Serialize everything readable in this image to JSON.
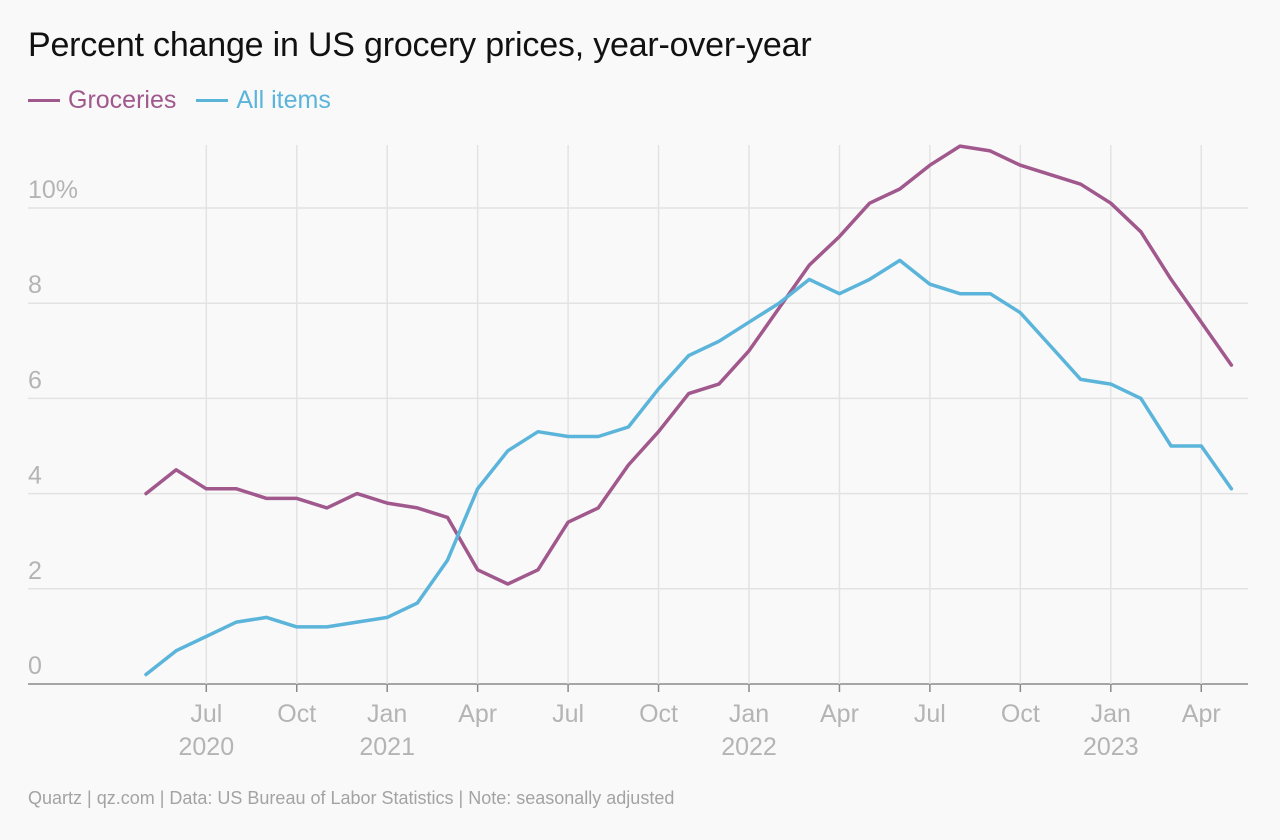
{
  "title": "Percent change in US grocery prices, year-over-year",
  "source_note": "Quartz | qz.com | Data: US Bureau of Labor Statistics | Note: seasonally adjusted",
  "colors": {
    "groceries": "#a0588d",
    "all_items": "#5bb4da",
    "grid": "#e3e3e3",
    "axis": "#8a8a8a",
    "tick_text": "#b4b4b4"
  },
  "chart_data": {
    "type": "line",
    "title": "Percent change in US grocery prices, year-over-year",
    "x": [
      "2020-05",
      "2020-06",
      "2020-07",
      "2020-08",
      "2020-09",
      "2020-10",
      "2020-11",
      "2020-12",
      "2021-01",
      "2021-02",
      "2021-03",
      "2021-04",
      "2021-05",
      "2021-06",
      "2021-07",
      "2021-08",
      "2021-09",
      "2021-10",
      "2021-11",
      "2021-12",
      "2022-01",
      "2022-02",
      "2022-03",
      "2022-04",
      "2022-05",
      "2022-06",
      "2022-07",
      "2022-08",
      "2022-09",
      "2022-10",
      "2022-11",
      "2022-12",
      "2023-01",
      "2023-02",
      "2023-03",
      "2023-04",
      "2023-05"
    ],
    "series": [
      {
        "name": "Groceries",
        "color": "#a0588d",
        "values": [
          4.0,
          4.5,
          4.1,
          4.1,
          3.9,
          3.9,
          3.7,
          4.0,
          3.8,
          3.7,
          3.5,
          2.4,
          2.1,
          2.4,
          3.4,
          3.7,
          4.6,
          5.3,
          6.1,
          6.3,
          7.0,
          7.9,
          8.8,
          9.4,
          10.1,
          10.4,
          10.9,
          11.3,
          11.2,
          10.9,
          10.7,
          10.5,
          10.1,
          9.5,
          8.5,
          7.6,
          6.7
        ]
      },
      {
        "name": "All items",
        "color": "#5bb4da",
        "values": [
          0.2,
          0.7,
          1.0,
          1.3,
          1.4,
          1.2,
          1.2,
          1.3,
          1.4,
          1.7,
          2.6,
          4.1,
          4.9,
          5.3,
          5.2,
          5.2,
          5.4,
          6.2,
          6.9,
          7.2,
          7.6,
          8.0,
          8.5,
          8.2,
          8.5,
          8.9,
          8.4,
          8.2,
          8.2,
          7.8,
          7.1,
          6.4,
          6.3,
          6.0,
          5.0,
          5.0,
          4.1
        ]
      }
    ],
    "ylim": [
      0,
      11.5
    ],
    "y_ticks": [
      {
        "value": 0,
        "label": "0"
      },
      {
        "value": 2,
        "label": "2"
      },
      {
        "value": 4,
        "label": "4"
      },
      {
        "value": 6,
        "label": "6"
      },
      {
        "value": 8,
        "label": "8"
      },
      {
        "value": 10,
        "label": "10%"
      }
    ],
    "x_ticks": [
      {
        "date": "2020-07",
        "month": "Jul",
        "year": "2020"
      },
      {
        "date": "2020-10",
        "month": "Oct",
        "year": ""
      },
      {
        "date": "2021-01",
        "month": "Jan",
        "year": "2021"
      },
      {
        "date": "2021-04",
        "month": "Apr",
        "year": ""
      },
      {
        "date": "2021-07",
        "month": "Jul",
        "year": ""
      },
      {
        "date": "2021-10",
        "month": "Oct",
        "year": ""
      },
      {
        "date": "2022-01",
        "month": "Jan",
        "year": "2022"
      },
      {
        "date": "2022-04",
        "month": "Apr",
        "year": ""
      },
      {
        "date": "2022-07",
        "month": "Jul",
        "year": ""
      },
      {
        "date": "2022-10",
        "month": "Oct",
        "year": ""
      },
      {
        "date": "2023-01",
        "month": "Jan",
        "year": "2023"
      },
      {
        "date": "2023-04",
        "month": "Apr",
        "year": ""
      }
    ],
    "grid": true,
    "legend_position": "top-left"
  }
}
